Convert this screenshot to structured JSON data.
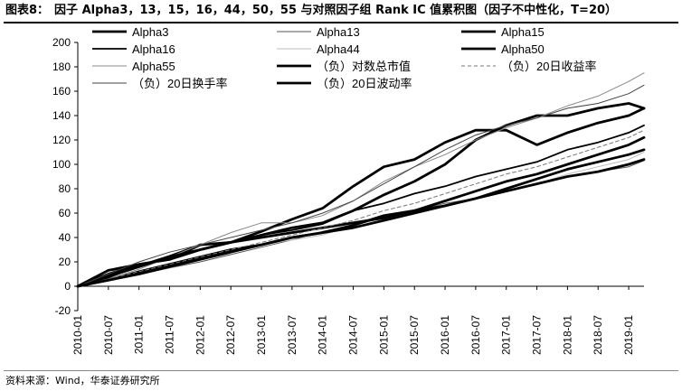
{
  "header": {
    "figure_label": "图表8：",
    "title": "因子 Alpha3，13，15，16，44，50，55 与对照因子组 Rank IC 值累积图（因子不中性化，T=20）"
  },
  "footer": {
    "source": "资料来源：Wind，华泰证券研究所"
  },
  "chart_data": {
    "type": "line",
    "title": "",
    "xlabel": "",
    "ylabel": "",
    "ylim": [
      -20,
      200
    ],
    "yticks": [
      -20,
      0,
      20,
      40,
      60,
      80,
      100,
      120,
      140,
      160,
      180,
      200
    ],
    "x_start": "2010-01",
    "x_end": "2019-04",
    "xticks": [
      "2010-01",
      "2010-07",
      "2011-01",
      "2011-07",
      "2012-01",
      "2012-07",
      "2013-01",
      "2013-07",
      "2014-01",
      "2014-07",
      "2015-01",
      "2015-07",
      "2016-01",
      "2016-07",
      "2017-01",
      "2017-07",
      "2018-01",
      "2018-07",
      "2019-01"
    ],
    "grid": false,
    "legend_position": "top",
    "series": [
      {
        "name": "Alpha3",
        "color": "#000000",
        "style": "thick",
        "x": [
          "2010-01",
          "2010-07",
          "2011-01",
          "2011-07",
          "2012-01",
          "2012-07",
          "2013-01",
          "2013-07",
          "2014-01",
          "2014-07",
          "2015-01",
          "2015-07",
          "2016-01",
          "2016-07",
          "2017-01",
          "2017-07",
          "2018-01",
          "2018-07",
          "2019-01",
          "2019-04"
        ],
        "values": [
          0,
          10,
          18,
          22,
          34,
          36,
          45,
          55,
          64,
          82,
          98,
          104,
          118,
          128,
          128,
          116,
          126,
          134,
          140,
          146
        ]
      },
      {
        "name": "Alpha13",
        "color": "#555555",
        "style": "thin",
        "x": [
          "2010-01",
          "2010-07",
          "2011-01",
          "2011-07",
          "2012-01",
          "2012-07",
          "2013-01",
          "2013-07",
          "2014-01",
          "2014-07",
          "2015-01",
          "2015-07",
          "2016-01",
          "2016-07",
          "2017-01",
          "2017-07",
          "2018-01",
          "2018-07",
          "2019-01",
          "2019-04"
        ],
        "values": [
          0,
          5,
          10,
          15,
          20,
          26,
          32,
          38,
          45,
          50,
          56,
          62,
          68,
          72,
          78,
          84,
          90,
          94,
          98,
          103
        ]
      },
      {
        "name": "Alpha15",
        "color": "#000000",
        "style": "thick",
        "x": [
          "2010-01",
          "2010-07",
          "2011-01",
          "2011-07",
          "2012-01",
          "2012-07",
          "2013-01",
          "2013-07",
          "2014-01",
          "2014-07",
          "2015-01",
          "2015-07",
          "2016-01",
          "2016-07",
          "2017-01",
          "2017-07",
          "2018-01",
          "2018-07",
          "2019-01",
          "2019-04"
        ],
        "values": [
          0,
          13,
          18,
          22,
          30,
          36,
          42,
          48,
          52,
          62,
          75,
          86,
          100,
          120,
          132,
          140,
          140,
          146,
          150,
          146
        ]
      },
      {
        "name": "Alpha16",
        "color": "#000000",
        "style": "medium",
        "x": [
          "2010-01",
          "2010-07",
          "2011-01",
          "2011-07",
          "2012-01",
          "2012-07",
          "2013-01",
          "2013-07",
          "2014-01",
          "2014-07",
          "2015-01",
          "2015-07",
          "2016-01",
          "2016-07",
          "2017-01",
          "2017-07",
          "2018-01",
          "2018-07",
          "2019-01",
          "2019-04"
        ],
        "values": [
          0,
          7,
          17,
          25,
          34,
          36,
          42,
          46,
          51,
          62,
          68,
          76,
          82,
          90,
          96,
          102,
          112,
          118,
          126,
          132
        ]
      },
      {
        "name": "Alpha44",
        "color": "#bbbbbb",
        "style": "thin",
        "x": [
          "2010-01",
          "2010-07",
          "2011-01",
          "2011-07",
          "2012-01",
          "2012-07",
          "2013-01",
          "2013-07",
          "2014-01",
          "2014-07",
          "2015-01",
          "2015-07",
          "2016-01",
          "2016-07",
          "2017-01",
          "2017-07",
          "2018-01",
          "2018-07",
          "2019-01",
          "2019-04"
        ],
        "values": [
          0,
          5,
          10,
          15,
          22,
          28,
          34,
          38,
          42,
          50,
          56,
          62,
          66,
          72,
          78,
          84,
          92,
          98,
          104,
          110
        ]
      },
      {
        "name": "Alpha50",
        "color": "#000000",
        "style": "thick",
        "x": [
          "2010-01",
          "2010-07",
          "2011-01",
          "2011-07",
          "2012-01",
          "2012-07",
          "2013-01",
          "2013-07",
          "2014-01",
          "2014-07",
          "2015-01",
          "2015-07",
          "2016-01",
          "2016-07",
          "2017-01",
          "2017-07",
          "2018-01",
          "2018-07",
          "2019-01",
          "2019-04"
        ],
        "values": [
          0,
          5,
          12,
          18,
          24,
          30,
          34,
          40,
          44,
          50,
          58,
          62,
          66,
          72,
          80,
          88,
          96,
          102,
          108,
          112
        ]
      },
      {
        "name": "Alpha55",
        "color": "#888888",
        "style": "thin",
        "x": [
          "2010-01",
          "2010-07",
          "2011-01",
          "2011-07",
          "2012-01",
          "2012-07",
          "2013-01",
          "2013-07",
          "2014-01",
          "2014-07",
          "2015-01",
          "2015-07",
          "2016-01",
          "2016-07",
          "2017-01",
          "2017-07",
          "2018-01",
          "2018-07",
          "2019-01",
          "2019-04"
        ],
        "values": [
          0,
          6,
          14,
          24,
          34,
          44,
          52,
          52,
          58,
          70,
          86,
          98,
          108,
          120,
          130,
          138,
          148,
          156,
          168,
          175
        ]
      },
      {
        "name": "（负）对数总市值",
        "color": "#000000",
        "style": "thick",
        "x": [
          "2010-01",
          "2010-07",
          "2011-01",
          "2011-07",
          "2012-01",
          "2012-07",
          "2013-01",
          "2013-07",
          "2014-01",
          "2014-07",
          "2015-01",
          "2015-07",
          "2016-01",
          "2016-07",
          "2017-01",
          "2017-07",
          "2018-01",
          "2018-07",
          "2019-01",
          "2019-04"
        ],
        "values": [
          0,
          8,
          16,
          24,
          30,
          36,
          40,
          44,
          48,
          52,
          56,
          62,
          70,
          78,
          86,
          92,
          100,
          108,
          116,
          122
        ]
      },
      {
        "name": "（负）20日收益率",
        "color": "#777777",
        "style": "dashed",
        "x": [
          "2010-01",
          "2010-07",
          "2011-01",
          "2011-07",
          "2012-01",
          "2012-07",
          "2013-01",
          "2013-07",
          "2014-01",
          "2014-07",
          "2015-01",
          "2015-07",
          "2016-01",
          "2016-07",
          "2017-01",
          "2017-07",
          "2018-01",
          "2018-07",
          "2019-01",
          "2019-04"
        ],
        "values": [
          0,
          6,
          12,
          18,
          24,
          30,
          36,
          42,
          48,
          54,
          62,
          68,
          76,
          84,
          92,
          98,
          106,
          114,
          122,
          128
        ]
      },
      {
        "name": "（负）20日换手率",
        "color": "#444444",
        "style": "thin",
        "x": [
          "2010-01",
          "2010-07",
          "2011-01",
          "2011-07",
          "2012-01",
          "2012-07",
          "2013-01",
          "2013-07",
          "2014-01",
          "2014-07",
          "2015-01",
          "2015-07",
          "2016-01",
          "2016-07",
          "2017-01",
          "2017-07",
          "2018-01",
          "2018-07",
          "2019-01",
          "2019-04"
        ],
        "values": [
          0,
          10,
          20,
          28,
          34,
          40,
          46,
          52,
          60,
          70,
          84,
          98,
          112,
          124,
          132,
          138,
          146,
          150,
          158,
          165
        ]
      },
      {
        "name": "（负）20日波动率",
        "color": "#000000",
        "style": "thick",
        "x": [
          "2010-01",
          "2010-07",
          "2011-01",
          "2011-07",
          "2012-01",
          "2012-07",
          "2013-01",
          "2013-07",
          "2014-01",
          "2014-07",
          "2015-01",
          "2015-07",
          "2016-01",
          "2016-07",
          "2017-01",
          "2017-07",
          "2018-01",
          "2018-07",
          "2019-01",
          "2019-04"
        ],
        "values": [
          0,
          5,
          10,
          16,
          22,
          28,
          34,
          40,
          44,
          48,
          54,
          60,
          66,
          72,
          78,
          84,
          90,
          94,
          100,
          104
        ]
      }
    ]
  }
}
